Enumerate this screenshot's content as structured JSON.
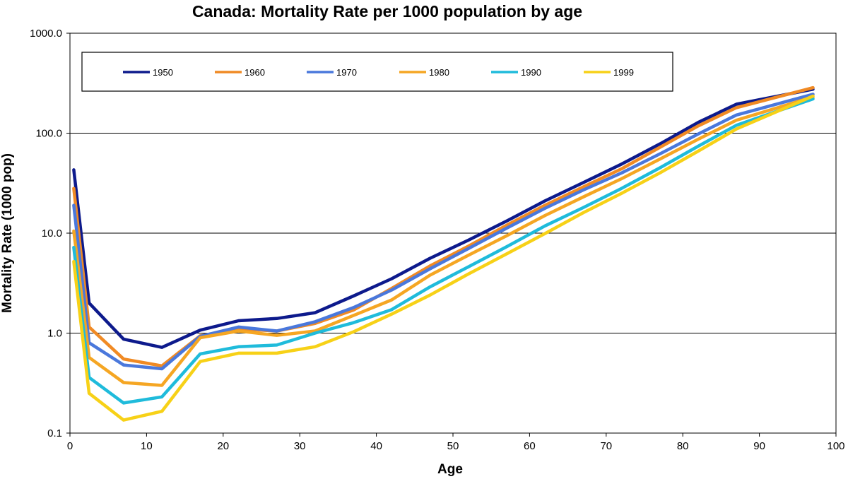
{
  "chart_data": {
    "type": "line",
    "title": "Canada: Mortality Rate per 1000 population by age",
    "xlabel": "Age",
    "ylabel": "Mortality Rate (1000 pop)",
    "y_scale": "log",
    "xlim": [
      0,
      100
    ],
    "ylim": [
      0.1,
      1000
    ],
    "x_ticks": [
      0,
      10,
      20,
      30,
      40,
      50,
      60,
      70,
      80,
      90,
      100
    ],
    "x_tick_labels": [
      "0",
      "10",
      "20",
      "30",
      "40",
      "50",
      "60",
      "70",
      "80",
      "90",
      "100"
    ],
    "y_ticks": [
      0.1,
      1,
      10,
      100,
      1000
    ],
    "y_tick_labels": [
      "0.1",
      "1.0",
      "10.0",
      "100.0",
      "1000.0"
    ],
    "grid": "horizontal",
    "legend_position": "top",
    "x": [
      0.5,
      2.5,
      7,
      12,
      17,
      22,
      27,
      32,
      37,
      42,
      47,
      52,
      57,
      62,
      67,
      72,
      77,
      82,
      87,
      97
    ],
    "series": [
      {
        "name": "1950",
        "color": "#0d1a8c",
        "values": [
          43,
          2.0,
          0.87,
          0.72,
          1.07,
          1.33,
          1.4,
          1.6,
          2.35,
          3.5,
          5.6,
          8.5,
          13.2,
          21,
          32,
          49,
          78,
          128,
          195,
          275
        ]
      },
      {
        "name": "1960",
        "color": "#f08a24",
        "values": [
          28,
          1.15,
          0.55,
          0.47,
          0.94,
          1.1,
          1.05,
          1.25,
          1.7,
          2.8,
          4.7,
          7.4,
          12,
          19,
          29,
          44,
          72,
          118,
          180,
          285
        ]
      },
      {
        "name": "1970",
        "color": "#4a78dc",
        "values": [
          19,
          0.8,
          0.48,
          0.44,
          0.93,
          1.15,
          1.05,
          1.3,
          1.8,
          2.7,
          4.4,
          7.0,
          11.2,
          17.7,
          27,
          40,
          62,
          98,
          152,
          245
        ]
      },
      {
        "name": "1980",
        "color": "#f5a623",
        "values": [
          10.5,
          0.57,
          0.32,
          0.3,
          0.9,
          1.05,
          0.95,
          1.05,
          1.5,
          2.15,
          3.8,
          6.0,
          9.4,
          15,
          23,
          35,
          55,
          87,
          135,
          230
        ]
      },
      {
        "name": "1990",
        "color": "#1fbbdb",
        "values": [
          7.2,
          0.36,
          0.2,
          0.23,
          0.62,
          0.73,
          0.76,
          1.0,
          1.27,
          1.72,
          2.9,
          4.6,
          7.3,
          11.8,
          18,
          28,
          45,
          74,
          120,
          220
        ]
      },
      {
        "name": "1999",
        "color": "#f7d117",
        "values": [
          5.2,
          0.25,
          0.135,
          0.165,
          0.52,
          0.63,
          0.63,
          0.73,
          1.03,
          1.55,
          2.4,
          3.9,
          6.2,
          9.9,
          16,
          25,
          40,
          66,
          110,
          235
        ]
      }
    ]
  }
}
